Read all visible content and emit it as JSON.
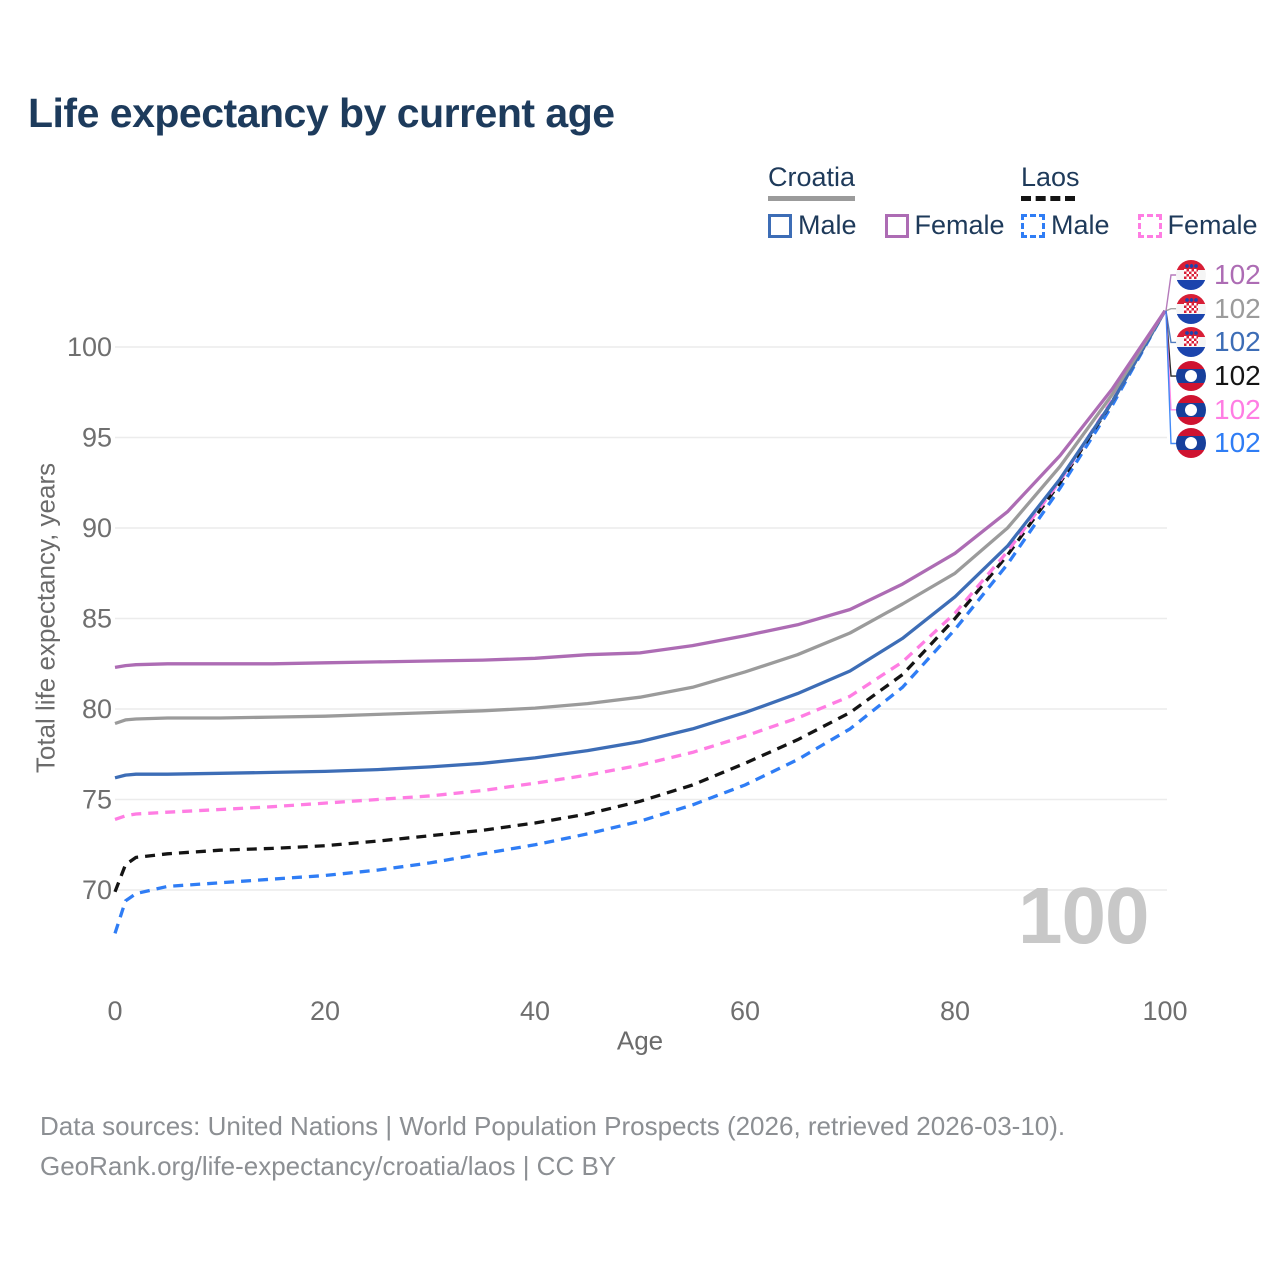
{
  "header": {
    "title": "Life expectancy by current age"
  },
  "legend": {
    "croatia": {
      "label": "Croatia",
      "line_style": "solid",
      "line_color": "#9b9b9b",
      "male_label": "Male",
      "male_color": "#3d6db6",
      "female_label": "Female",
      "female_color": "#ad6cb4"
    },
    "laos": {
      "label": "Laos",
      "line_style": "dashed",
      "line_color": "#141414",
      "male_label": "Male",
      "male_color": "#2f7df5",
      "female_label": "Female",
      "female_color": "#ff7de3"
    }
  },
  "chart_data": {
    "type": "line",
    "title": "Life expectancy by current age",
    "xlabel": "Age",
    "ylabel": "Total life expectancy, years",
    "x_ticks": [
      0,
      20,
      40,
      60,
      80,
      100
    ],
    "y_ticks": [
      70,
      75,
      80,
      85,
      90,
      95,
      100
    ],
    "xlim": [
      0,
      100
    ],
    "ylim": [
      67,
      102.5
    ],
    "grid": "horizontal",
    "legend_position": "top-right",
    "series": [
      {
        "id": "laos_male",
        "name": "Laos Male",
        "country": "Laos",
        "sex": "Male",
        "style": "dashed",
        "color": "#2f7df5",
        "end_label": 102,
        "points": [
          [
            0,
            67.6
          ],
          [
            1,
            69.4
          ],
          [
            2,
            69.8
          ],
          [
            5,
            70.2
          ],
          [
            10,
            70.4
          ],
          [
            15,
            70.6
          ],
          [
            20,
            70.8
          ],
          [
            25,
            71.1
          ],
          [
            30,
            71.5
          ],
          [
            35,
            72.0
          ],
          [
            40,
            72.5
          ],
          [
            45,
            73.1
          ],
          [
            50,
            73.8
          ],
          [
            55,
            74.7
          ],
          [
            60,
            75.8
          ],
          [
            65,
            77.2
          ],
          [
            70,
            78.9
          ],
          [
            75,
            81.2
          ],
          [
            80,
            84.4
          ],
          [
            85,
            88.0
          ],
          [
            90,
            92.2
          ],
          [
            95,
            96.8
          ],
          [
            100,
            102
          ]
        ]
      },
      {
        "id": "laos_total",
        "name": "Laos",
        "country": "Laos",
        "sex": "Both",
        "style": "dashed",
        "color": "#141414",
        "end_label": 102,
        "points": [
          [
            0,
            69.9
          ],
          [
            1,
            71.4
          ],
          [
            2,
            71.8
          ],
          [
            5,
            72.0
          ],
          [
            10,
            72.2
          ],
          [
            15,
            72.3
          ],
          [
            20,
            72.45
          ],
          [
            25,
            72.7
          ],
          [
            30,
            73.0
          ],
          [
            35,
            73.3
          ],
          [
            40,
            73.7
          ],
          [
            45,
            74.2
          ],
          [
            50,
            74.9
          ],
          [
            55,
            75.8
          ],
          [
            60,
            77.0
          ],
          [
            65,
            78.3
          ],
          [
            70,
            79.8
          ],
          [
            75,
            81.9
          ],
          [
            80,
            85.0
          ],
          [
            85,
            88.5
          ],
          [
            90,
            92.5
          ],
          [
            95,
            97.0
          ],
          [
            100,
            102
          ]
        ]
      },
      {
        "id": "laos_female",
        "name": "Laos Female",
        "country": "Laos",
        "sex": "Female",
        "style": "dashed",
        "color": "#ff7de3",
        "end_label": 102,
        "points": [
          [
            0,
            73.9
          ],
          [
            1,
            74.1
          ],
          [
            2,
            74.2
          ],
          [
            5,
            74.3
          ],
          [
            10,
            74.45
          ],
          [
            15,
            74.6
          ],
          [
            20,
            74.8
          ],
          [
            25,
            75.0
          ],
          [
            30,
            75.2
          ],
          [
            35,
            75.5
          ],
          [
            40,
            75.9
          ],
          [
            45,
            76.35
          ],
          [
            50,
            76.9
          ],
          [
            55,
            77.6
          ],
          [
            60,
            78.5
          ],
          [
            65,
            79.5
          ],
          [
            70,
            80.7
          ],
          [
            75,
            82.6
          ],
          [
            80,
            85.3
          ],
          [
            85,
            88.7
          ],
          [
            90,
            92.6
          ],
          [
            95,
            97.1
          ],
          [
            100,
            102
          ]
        ]
      },
      {
        "id": "croatia_male",
        "name": "Croatia Male",
        "country": "Croatia",
        "sex": "Male",
        "style": "solid",
        "color": "#3d6db6",
        "end_label": 102,
        "points": [
          [
            0,
            76.2
          ],
          [
            1,
            76.35
          ],
          [
            2,
            76.4
          ],
          [
            5,
            76.4
          ],
          [
            10,
            76.45
          ],
          [
            15,
            76.5
          ],
          [
            20,
            76.55
          ],
          [
            25,
            76.65
          ],
          [
            30,
            76.8
          ],
          [
            35,
            77.0
          ],
          [
            40,
            77.3
          ],
          [
            45,
            77.7
          ],
          [
            50,
            78.2
          ],
          [
            55,
            78.9
          ],
          [
            60,
            79.8
          ],
          [
            65,
            80.85
          ],
          [
            70,
            82.1
          ],
          [
            75,
            83.9
          ],
          [
            80,
            86.2
          ],
          [
            85,
            89.0
          ],
          [
            90,
            92.7
          ],
          [
            95,
            97.0
          ],
          [
            100,
            102
          ]
        ]
      },
      {
        "id": "croatia_total",
        "name": "Croatia",
        "country": "Croatia",
        "sex": "Both",
        "style": "solid",
        "color": "#9b9b9b",
        "end_label": 102,
        "points": [
          [
            0,
            79.2
          ],
          [
            1,
            79.4
          ],
          [
            2,
            79.45
          ],
          [
            5,
            79.5
          ],
          [
            10,
            79.5
          ],
          [
            15,
            79.55
          ],
          [
            20,
            79.6
          ],
          [
            25,
            79.7
          ],
          [
            30,
            79.8
          ],
          [
            35,
            79.9
          ],
          [
            40,
            80.05
          ],
          [
            45,
            80.3
          ],
          [
            50,
            80.65
          ],
          [
            55,
            81.2
          ],
          [
            60,
            82.05
          ],
          [
            65,
            83.0
          ],
          [
            70,
            84.2
          ],
          [
            75,
            85.8
          ],
          [
            80,
            87.5
          ],
          [
            85,
            90.0
          ],
          [
            90,
            93.4
          ],
          [
            95,
            97.4
          ],
          [
            100,
            102
          ]
        ]
      },
      {
        "id": "croatia_female",
        "name": "Croatia Female",
        "country": "Croatia",
        "sex": "Female",
        "style": "solid",
        "color": "#ad6cb4",
        "end_label": 102,
        "points": [
          [
            0,
            82.3
          ],
          [
            1,
            82.4
          ],
          [
            2,
            82.45
          ],
          [
            5,
            82.5
          ],
          [
            10,
            82.5
          ],
          [
            15,
            82.5
          ],
          [
            20,
            82.55
          ],
          [
            25,
            82.6
          ],
          [
            30,
            82.65
          ],
          [
            35,
            82.7
          ],
          [
            40,
            82.8
          ],
          [
            45,
            83.0
          ],
          [
            50,
            83.1
          ],
          [
            55,
            83.5
          ],
          [
            60,
            84.05
          ],
          [
            65,
            84.65
          ],
          [
            70,
            85.5
          ],
          [
            75,
            86.9
          ],
          [
            80,
            88.6
          ],
          [
            85,
            90.9
          ],
          [
            90,
            94.0
          ],
          [
            95,
            97.7
          ],
          [
            100,
            102
          ]
        ]
      }
    ]
  },
  "end_labels": {
    "rows": [
      {
        "flag": "croatia",
        "value": "102",
        "color": "#ad6cb4"
      },
      {
        "flag": "croatia",
        "value": "102",
        "color": "#9b9b9b"
      },
      {
        "flag": "croatia",
        "value": "102",
        "color": "#3d6db6"
      },
      {
        "flag": "laos",
        "value": "102",
        "color": "#141414"
      },
      {
        "flag": "laos",
        "value": "102",
        "color": "#ff7de3"
      },
      {
        "flag": "laos",
        "value": "102",
        "color": "#2f7df5"
      }
    ]
  },
  "plot": {
    "frame_label": "100"
  },
  "footer": {
    "line1": "Data sources: United Nations | World Population Prospects (2026, retrieved 2026-03-10).",
    "line2": "GeoRank.org/life-expectancy/croatia/laos | CC BY"
  }
}
